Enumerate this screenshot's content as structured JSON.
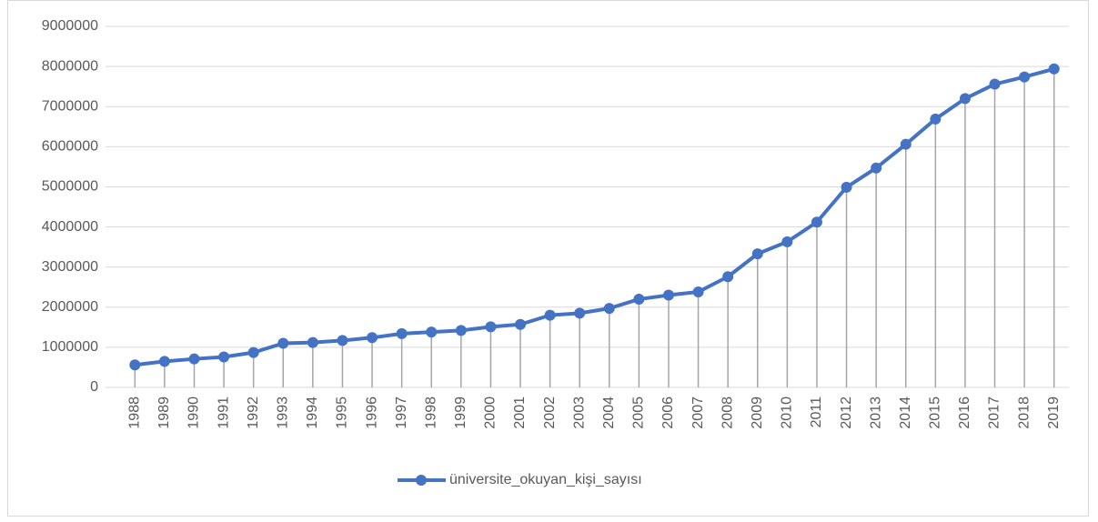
{
  "chart_data": {
    "type": "line",
    "categories": [
      "1988",
      "1989",
      "1990",
      "1991",
      "1992",
      "1993",
      "1994",
      "1995",
      "1996",
      "1997",
      "1998",
      "1999",
      "2000",
      "2001",
      "2002",
      "2003",
      "2004",
      "2005",
      "2006",
      "2007",
      "2008",
      "2009",
      "2010",
      "2011",
      "2012",
      "2013",
      "2014",
      "2015",
      "2016",
      "2017",
      "2018",
      "2019"
    ],
    "series": [
      {
        "name": "üniversite_okuyan_kişi_sayısı",
        "color": "#4472c4",
        "values": [
          560000,
          650000,
          710000,
          760000,
          870000,
          1100000,
          1120000,
          1170000,
          1240000,
          1340000,
          1380000,
          1420000,
          1510000,
          1570000,
          1800000,
          1850000,
          1970000,
          2200000,
          2300000,
          2380000,
          2760000,
          3330000,
          3630000,
          4120000,
          4990000,
          5470000,
          6060000,
          6690000,
          7200000,
          7560000,
          7740000,
          7940000
        ]
      }
    ],
    "ylim": [
      0,
      9000000
    ],
    "yticks": [
      0,
      1000000,
      2000000,
      3000000,
      4000000,
      5000000,
      6000000,
      7000000,
      8000000,
      9000000
    ],
    "grid": true,
    "drop_lines": true,
    "legend": "bottom"
  }
}
